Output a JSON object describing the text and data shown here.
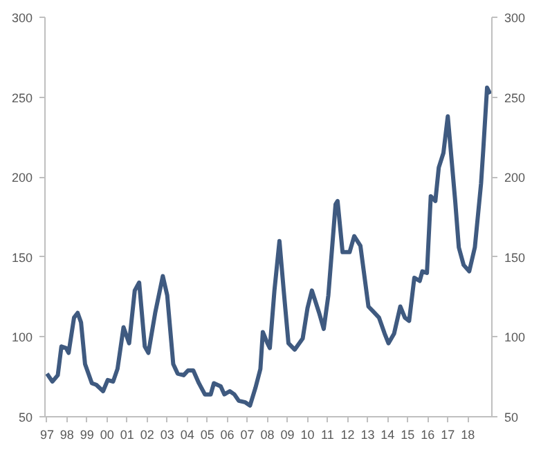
{
  "chart_data": {
    "type": "line",
    "x": [
      1997.0,
      1997.27,
      1997.54,
      1997.72,
      1997.95,
      1998.08,
      1998.35,
      1998.53,
      1998.7,
      1998.9,
      1999.24,
      1999.46,
      1999.8,
      2000.03,
      2000.3,
      2000.52,
      2000.82,
      2001.1,
      2001.38,
      2001.6,
      2001.88,
      2002.06,
      2002.4,
      2002.78,
      2003.0,
      2003.3,
      2003.52,
      2003.82,
      2004.04,
      2004.3,
      2004.58,
      2004.88,
      2005.17,
      2005.33,
      2005.67,
      2005.85,
      2006.12,
      2006.35,
      2006.57,
      2006.9,
      2007.13,
      2007.4,
      2007.65,
      2007.77,
      2008.0,
      2008.12,
      2008.35,
      2008.6,
      2008.82,
      2009.05,
      2009.36,
      2009.76,
      2010.0,
      2010.22,
      2010.58,
      2010.81,
      2011.04,
      2011.4,
      2011.5,
      2011.75,
      2012.1,
      2012.33,
      2012.64,
      2013.04,
      2013.27,
      2013.57,
      2013.85,
      2014.04,
      2014.32,
      2014.63,
      2014.86,
      2015.07,
      2015.33,
      2015.6,
      2015.73,
      2015.96,
      2016.15,
      2016.38,
      2016.55,
      2016.78,
      2017.0,
      2017.37,
      2017.55,
      2017.79,
      2018.07,
      2018.35,
      2018.66,
      2018.77,
      2018.96,
      2019.12
    ],
    "series": [
      {
        "color": "#3f5a80",
        "values": [
          77,
          72,
          76,
          94,
          93,
          90,
          112,
          115,
          109,
          83,
          71,
          70,
          66,
          73,
          72,
          80,
          106,
          96,
          129,
          134,
          94,
          90,
          115,
          138,
          126,
          83,
          77,
          76,
          79,
          79,
          71,
          64,
          64,
          71,
          69,
          64,
          66,
          64,
          60,
          59,
          57,
          68,
          80,
          103,
          96,
          93,
          129,
          160,
          128,
          96,
          92,
          99,
          118,
          129,
          115,
          105,
          126,
          183,
          185,
          153,
          153,
          163,
          157,
          119,
          116,
          112,
          102,
          96,
          102,
          119,
          112,
          110,
          137,
          135,
          141,
          140,
          188,
          185,
          206,
          215,
          238,
          185,
          156,
          145,
          141,
          156,
          196,
          217,
          256,
          252
        ]
      }
    ],
    "xlim": [
      1996.9,
      2019.2
    ],
    "xticks": [
      {
        "value": 1997,
        "label": "97"
      },
      {
        "value": 1998,
        "label": "98"
      },
      {
        "value": 1999,
        "label": "99"
      },
      {
        "value": 2000,
        "label": "00"
      },
      {
        "value": 2001,
        "label": "01"
      },
      {
        "value": 2002,
        "label": "02"
      },
      {
        "value": 2003,
        "label": "03"
      },
      {
        "value": 2004,
        "label": "04"
      },
      {
        "value": 2005,
        "label": "05"
      },
      {
        "value": 2006,
        "label": "06"
      },
      {
        "value": 2007,
        "label": "07"
      },
      {
        "value": 2008,
        "label": "08"
      },
      {
        "value": 2009,
        "label": "09"
      },
      {
        "value": 2010,
        "label": "10"
      },
      {
        "value": 2011,
        "label": "11"
      },
      {
        "value": 2012,
        "label": "12"
      },
      {
        "value": 2013,
        "label": "13"
      },
      {
        "value": 2014,
        "label": "14"
      },
      {
        "value": 2015,
        "label": "15"
      },
      {
        "value": 2016,
        "label": "16"
      },
      {
        "value": 2017,
        "label": "17"
      },
      {
        "value": 2018,
        "label": "18"
      }
    ],
    "ylim": [
      50,
      300
    ],
    "yticks": [
      50,
      100,
      150,
      200,
      250,
      300
    ],
    "y2lim": [
      50,
      300
    ],
    "y2ticks": [
      50,
      100,
      150,
      200,
      250,
      300
    ],
    "grid": false
  }
}
